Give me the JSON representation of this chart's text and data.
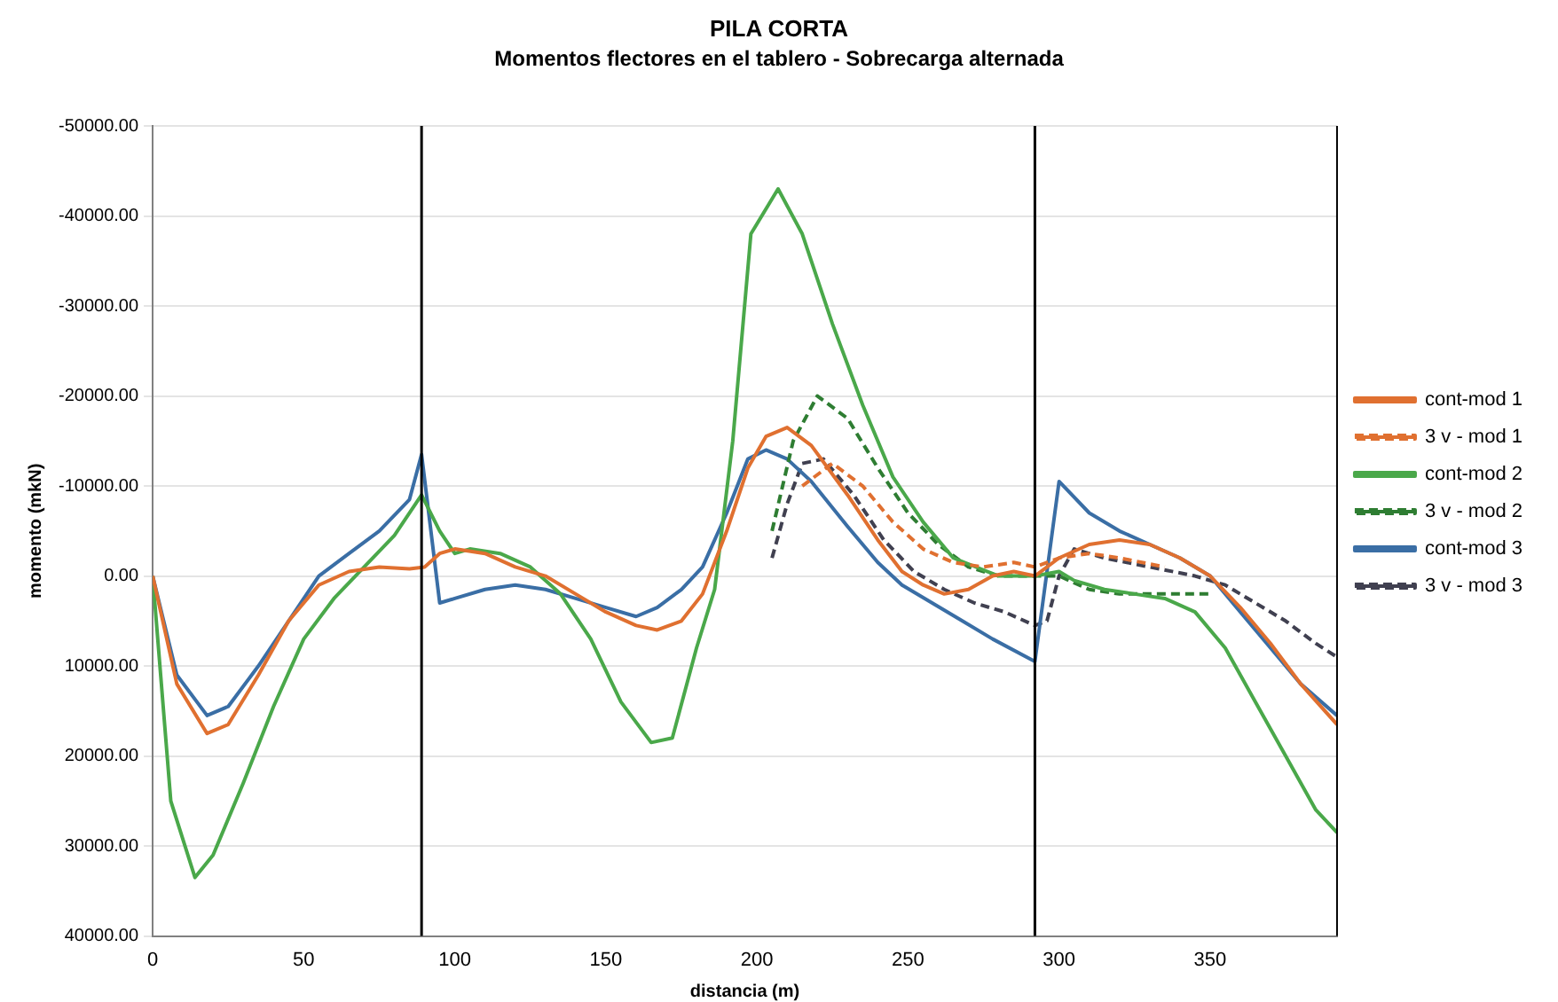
{
  "chart_data": {
    "type": "line",
    "title": "PILA CORTA",
    "subtitle": "Momentos flectores en el tablero - Sobrecarga alternada",
    "xlabel": "distancia (m)",
    "ylabel": "momento (mkN)",
    "xlim": [
      0,
      392
    ],
    "xticks": [
      0,
      50,
      100,
      150,
      200,
      250,
      300,
      350
    ],
    "ylim": [
      40000,
      -50000
    ],
    "yticks": [
      {
        "value": -50000,
        "label": "-50000.00"
      },
      {
        "value": -40000,
        "label": "-40000.00"
      },
      {
        "value": -30000,
        "label": "-30000.00"
      },
      {
        "value": -20000,
        "label": "-20000.00"
      },
      {
        "value": -10000,
        "label": "-10000.00"
      },
      {
        "value": 0,
        "label": "0.00"
      },
      {
        "value": 10000,
        "label": "10000.00"
      },
      {
        "value": 20000,
        "label": "20000.00"
      },
      {
        "value": 30000,
        "label": "30000.00"
      },
      {
        "value": 40000,
        "label": "40000.00"
      }
    ],
    "grid": "y",
    "legend": "right",
    "marker": "none",
    "ref_lines": [
      {
        "axis": "x",
        "value": 89,
        "color": "#000000"
      },
      {
        "axis": "x",
        "value": 292,
        "color": "#000000"
      }
    ],
    "series": [
      {
        "name": "cont-mod 1",
        "color": "#e07030",
        "line_style": "solid",
        "x": [
          0,
          8,
          18,
          25,
          35,
          45,
          55,
          65,
          75,
          85,
          90,
          95,
          100,
          110,
          120,
          130,
          140,
          150,
          160,
          167,
          175,
          182,
          190,
          197,
          203,
          210,
          218,
          230,
          240,
          248,
          255,
          262,
          270,
          278,
          285,
          292,
          300,
          310,
          320,
          330,
          340,
          350,
          360,
          370,
          380,
          392
        ],
        "values": [
          0,
          12000,
          17500,
          16500,
          11000,
          5000,
          1000,
          -500,
          -1000,
          -800,
          -1000,
          -2500,
          -3000,
          -2500,
          -1000,
          0,
          2000,
          4000,
          5500,
          6000,
          5000,
          2000,
          -5000,
          -12000,
          -15500,
          -16500,
          -14500,
          -9000,
          -4000,
          -500,
          1000,
          2000,
          1500,
          0,
          -500,
          0,
          -2000,
          -3500,
          -4000,
          -3500,
          -2000,
          0,
          3500,
          7500,
          12000,
          16500
        ]
      },
      {
        "name": "3 v - mod 1",
        "color": "#e07030",
        "line_style": "dashed",
        "x": [
          215,
          225,
          235,
          245,
          255,
          265,
          275,
          285,
          292,
          300,
          310,
          320,
          335
        ],
        "values": [
          -10000,
          -12500,
          -10000,
          -6000,
          -3000,
          -1500,
          -1000,
          -1500,
          -1000,
          -2000,
          -2500,
          -2000,
          -1000
        ]
      },
      {
        "name": "cont-mod 2",
        "color": "#4aa84a",
        "line_style": "solid",
        "x": [
          0,
          6,
          14,
          20,
          30,
          40,
          50,
          60,
          70,
          80,
          89,
          95,
          100,
          105,
          115,
          125,
          135,
          145,
          155,
          165,
          172,
          180,
          186,
          192,
          198,
          207,
          215,
          225,
          235,
          245,
          255,
          265,
          280,
          292,
          300,
          305,
          315,
          325,
          335,
          345,
          355,
          365,
          375,
          385,
          392
        ],
        "values": [
          0,
          25000,
          33500,
          31000,
          23000,
          14500,
          7000,
          2500,
          -1000,
          -4500,
          -9000,
          -5000,
          -2500,
          -3000,
          -2500,
          -1000,
          2000,
          7000,
          14000,
          18500,
          18000,
          8000,
          1500,
          -15000,
          -38000,
          -43000,
          -38000,
          -28000,
          -19000,
          -11000,
          -6000,
          -2000,
          0,
          0,
          -500,
          500,
          1500,
          2000,
          2500,
          4000,
          8000,
          14000,
          20000,
          26000,
          28500
        ]
      },
      {
        "name": "3 v - mod 2",
        "color": "#2e7d32",
        "line_style": "dashed",
        "x": [
          205,
          212,
          220,
          230,
          240,
          250,
          260,
          270,
          280,
          292,
          300,
          310,
          320,
          335,
          350
        ],
        "values": [
          -5000,
          -15000,
          -20000,
          -17500,
          -12000,
          -7000,
          -3500,
          -1000,
          0,
          0,
          0,
          1500,
          2000,
          2000,
          2000
        ]
      },
      {
        "name": "cont-mod 3",
        "color": "#3a6ea5",
        "line_style": "solid",
        "x": [
          0,
          8,
          18,
          25,
          35,
          45,
          55,
          65,
          75,
          85,
          89,
          95,
          100,
          110,
          120,
          130,
          140,
          150,
          160,
          167,
          175,
          182,
          190,
          197,
          203,
          210,
          218,
          230,
          240,
          248,
          258,
          268,
          278,
          292,
          300,
          310,
          320,
          330,
          340,
          350,
          360,
          370,
          380,
          392
        ],
        "values": [
          0,
          11000,
          15500,
          14500,
          10000,
          5000,
          0,
          -2500,
          -5000,
          -8500,
          -13500,
          3000,
          2500,
          1500,
          1000,
          1500,
          2500,
          3500,
          4500,
          3500,
          1500,
          -1000,
          -7000,
          -13000,
          -14000,
          -13000,
          -10500,
          -5500,
          -1500,
          1000,
          3000,
          5000,
          7000,
          9500,
          -10500,
          -7000,
          -5000,
          -3500,
          -2000,
          0,
          4000,
          8000,
          12000,
          15500
        ]
      },
      {
        "name": "3 v - mod 3",
        "color": "#404050",
        "line_style": "dashed",
        "x": [
          205,
          210,
          215,
          222,
          232,
          242,
          252,
          262,
          272,
          282,
          292,
          296,
          300,
          305,
          315,
          330,
          345,
          355,
          365,
          375,
          385,
          392
        ],
        "values": [
          -2000,
          -8000,
          -12500,
          -13000,
          -9000,
          -4000,
          -500,
          1500,
          3000,
          4000,
          5500,
          5000,
          0,
          -3000,
          -2000,
          -1000,
          0,
          1000,
          3000,
          5000,
          7500,
          9000
        ]
      }
    ]
  }
}
